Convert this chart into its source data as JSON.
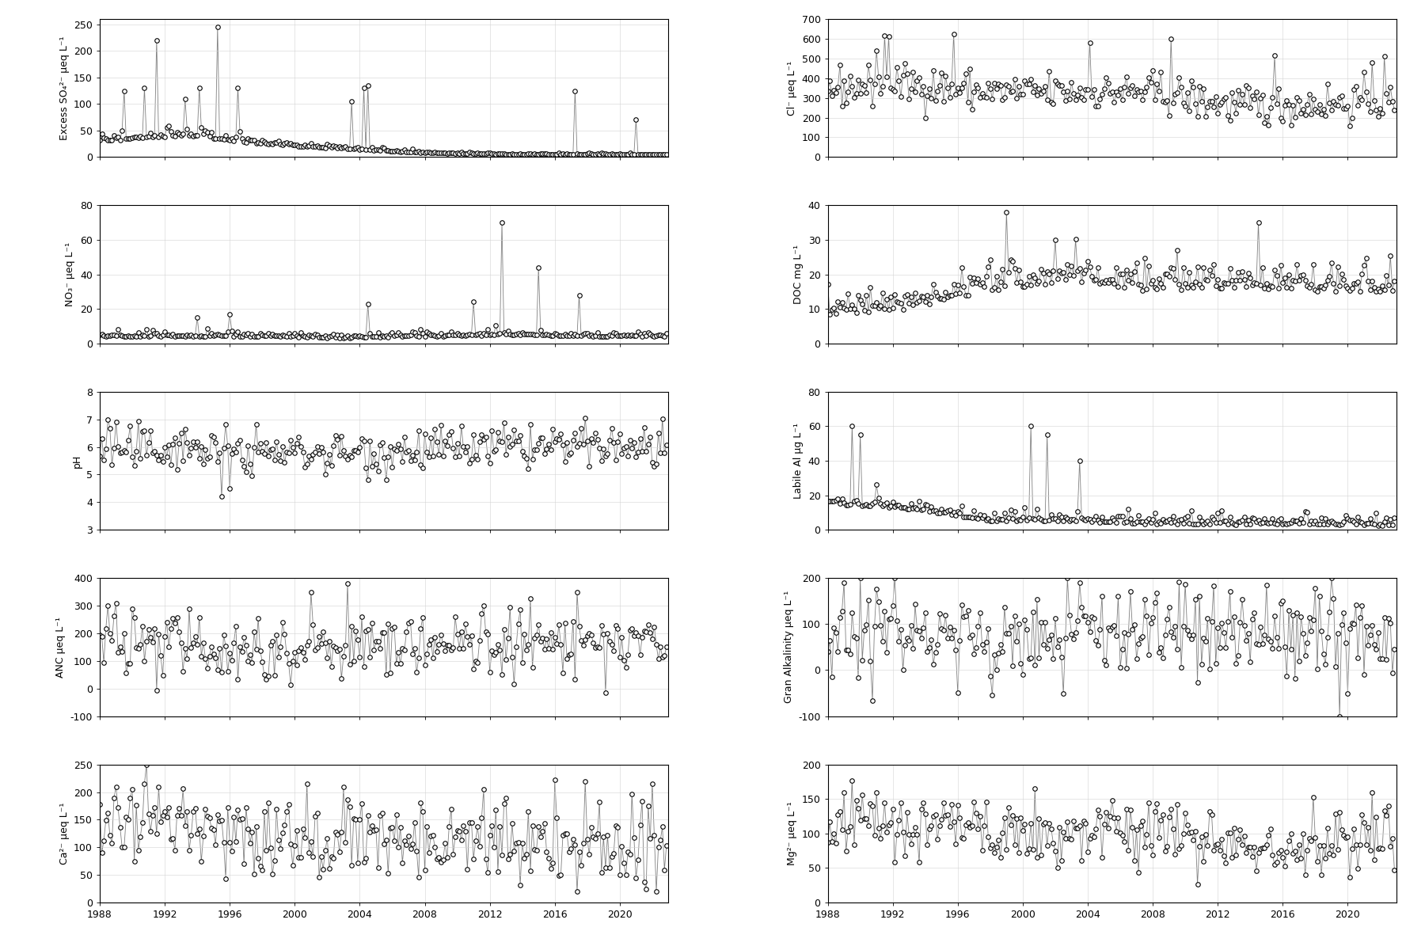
{
  "subplots": [
    {
      "ylabel": "Excess SO₄²⁻ μeq L⁻¹",
      "ylim": [
        0,
        260
      ],
      "yticks": [
        0,
        50,
        100,
        150,
        200,
        250
      ],
      "col": 0,
      "row": 0
    },
    {
      "ylabel": "Cl⁻ μeq L⁻¹",
      "ylim": [
        0,
        700
      ],
      "yticks": [
        0,
        100,
        200,
        300,
        400,
        500,
        600,
        700
      ],
      "col": 1,
      "row": 0
    },
    {
      "ylabel": "NO₃⁻ μeq L⁻¹",
      "ylim": [
        0,
        80
      ],
      "yticks": [
        0,
        20,
        40,
        60,
        80
      ],
      "col": 0,
      "row": 1
    },
    {
      "ylabel": "DOC mg L⁻¹",
      "ylim": [
        0,
        40
      ],
      "yticks": [
        0,
        10,
        20,
        30,
        40
      ],
      "col": 1,
      "row": 1
    },
    {
      "ylabel": "pH",
      "ylim": [
        3,
        8
      ],
      "yticks": [
        3,
        4,
        5,
        6,
        7,
        8
      ],
      "col": 0,
      "row": 2
    },
    {
      "ylabel": "Labile Al μg L⁻¹",
      "ylim": [
        0,
        80
      ],
      "yticks": [
        0,
        20,
        40,
        60,
        80
      ],
      "col": 1,
      "row": 2
    },
    {
      "ylabel": "ANC μeq L⁻¹",
      "ylim": [
        -100,
        400
      ],
      "yticks": [
        -100,
        0,
        100,
        200,
        300,
        400
      ],
      "col": 0,
      "row": 3
    },
    {
      "ylabel": "Gran Alkalinity μeq L⁻¹",
      "ylim": [
        -100,
        200
      ],
      "yticks": [
        -100,
        0,
        100,
        200
      ],
      "col": 1,
      "row": 3
    },
    {
      "ylabel": "Ca²⁻ μeq L⁻¹",
      "ylim": [
        0,
        250
      ],
      "yticks": [
        0,
        50,
        100,
        150,
        200,
        250
      ],
      "col": 0,
      "row": 4
    },
    {
      "ylabel": "Mg²⁻ μeq L⁻¹",
      "ylim": [
        0,
        200
      ],
      "yticks": [
        0,
        50,
        100,
        150,
        200
      ],
      "col": 1,
      "row": 4
    }
  ],
  "xlim": [
    1988,
    2023
  ],
  "xticks": [
    1988,
    1992,
    1996,
    2000,
    2004,
    2008,
    2012,
    2016,
    2020
  ],
  "marker": "o",
  "marker_size": 4,
  "marker_facecolor": "white",
  "marker_edgecolor": "black",
  "marker_edgewidth": 0.8,
  "line_color": "gray",
  "line_width": 0.6,
  "grid_color": "lightgray",
  "background_color": "white",
  "figsize": [
    18.0,
    12.0
  ],
  "dpi": 100
}
